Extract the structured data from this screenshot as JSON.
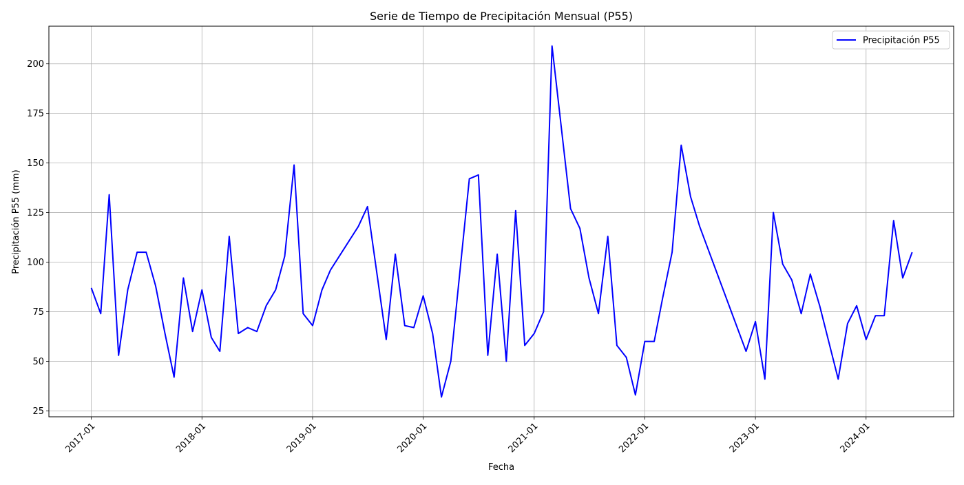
{
  "chart_data": {
    "type": "line",
    "title": "Serie de Tiempo de Precipitación Mensual (P55)",
    "xlabel": "Fecha",
    "ylabel": "Precipitación P55 (mm)",
    "ylim": [
      22,
      219
    ],
    "xlim": [
      "2016-08-14",
      "2024-10-16"
    ],
    "y_ticks": [
      25,
      50,
      75,
      100,
      125,
      150,
      175,
      200
    ],
    "x_ticks": [
      "2017-01",
      "2018-01",
      "2019-01",
      "2020-01",
      "2021-01",
      "2022-01",
      "2023-01",
      "2024-01"
    ],
    "grid": true,
    "legend_position": "top-right",
    "colors": {
      "line": "#0000ff",
      "grid": "#b0b0b0",
      "axes": "#000000"
    },
    "series": [
      {
        "name": "Precipitación P55",
        "x": [
          "2017-01",
          "2017-02",
          "2017-03",
          "2017-04",
          "2017-05",
          "2017-06",
          "2017-07",
          "2017-08",
          "2017-09",
          "2017-10",
          "2017-11",
          "2017-12",
          "2018-01",
          "2018-02",
          "2018-03",
          "2018-04",
          "2018-05",
          "2018-06",
          "2018-07",
          "2018-08",
          "2018-09",
          "2018-10",
          "2018-11",
          "2018-12",
          "2019-01",
          "2019-02",
          "2019-03",
          "2019-06",
          "2019-07",
          "2019-09",
          "2019-10",
          "2019-11",
          "2019-12",
          "2020-01",
          "2020-02",
          "2020-03",
          "2020-04",
          "2020-06",
          "2020-07",
          "2020-08",
          "2020-09",
          "2020-10",
          "2020-11",
          "2020-12",
          "2021-01",
          "2021-02",
          "2021-03",
          "2021-05",
          "2021-06",
          "2021-07",
          "2021-08",
          "2021-09",
          "2021-10",
          "2021-11",
          "2021-12",
          "2022-01",
          "2022-02",
          "2022-03",
          "2022-04",
          "2022-05",
          "2022-06",
          "2022-07",
          "2022-12",
          "2023-01",
          "2023-02",
          "2023-03",
          "2023-04",
          "2023-05",
          "2023-06",
          "2023-07",
          "2023-08",
          "2023-10",
          "2023-11",
          "2023-12",
          "2024-01",
          "2024-02",
          "2024-03",
          "2024-04",
          "2024-05",
          "2024-06"
        ],
        "values": [
          87,
          74,
          134,
          53,
          86,
          105,
          105,
          88,
          64,
          42,
          92,
          65,
          86,
          62,
          55,
          113,
          64,
          67,
          65,
          78,
          86,
          103,
          149,
          74,
          68,
          86,
          96,
          118,
          128,
          61,
          104,
          68,
          67,
          83,
          64,
          32,
          50,
          142,
          144,
          53,
          104,
          50,
          126,
          58,
          64,
          75,
          209,
          127,
          117,
          92,
          74,
          113,
          58,
          52,
          33,
          60,
          60,
          82,
          105,
          159,
          133,
          118,
          55,
          70,
          41,
          125,
          99,
          91,
          74,
          94,
          78,
          41,
          69,
          78,
          61,
          73,
          73,
          121,
          92,
          105
        ]
      }
    ]
  }
}
